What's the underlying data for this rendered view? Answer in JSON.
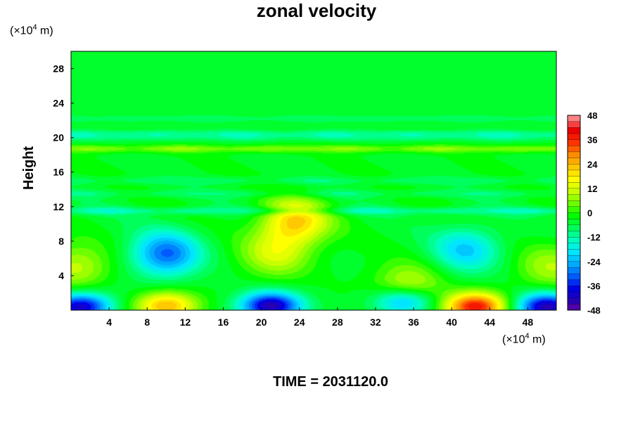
{
  "chart_data": {
    "type": "heatmap",
    "title": "zonal velocity",
    "ylabel": "Height",
    "xlabel": "",
    "x_unit": {
      "prefix": "(×10",
      "exponent": "4",
      "suffix": " m)"
    },
    "y_unit": {
      "prefix": "(×10",
      "exponent": "4",
      "suffix": " m)"
    },
    "xlim": [
      0,
      51
    ],
    "ylim": [
      0,
      30
    ],
    "x_ticks": [
      4,
      8,
      12,
      16,
      20,
      24,
      28,
      32,
      36,
      40,
      44,
      48
    ],
    "y_ticks": [
      4,
      8,
      12,
      16,
      20,
      24,
      28
    ],
    "colorbar": {
      "min": -48,
      "max": 48,
      "step": 3,
      "tick_labels": [
        48,
        36,
        24,
        12,
        0,
        -12,
        -24,
        -36,
        -48
      ]
    },
    "features": [
      {
        "x": 1.0,
        "y": 0.4,
        "value": -38
      },
      {
        "x": 0.5,
        "y": 5.0,
        "value": 14
      },
      {
        "x": 10.0,
        "y": 0.5,
        "value": 28
      },
      {
        "x": 10.0,
        "y": 6.5,
        "value": -27
      },
      {
        "x": 21.0,
        "y": 0.5,
        "value": -40
      },
      {
        "x": 21.5,
        "y": 6.5,
        "value": 15
      },
      {
        "x": 23.5,
        "y": 10.2,
        "value": 25
      },
      {
        "x": 35.0,
        "y": 1.0,
        "value": -25
      },
      {
        "x": 35.5,
        "y": 2.8,
        "value": 15
      },
      {
        "x": 42.5,
        "y": 0.4,
        "value": 42
      },
      {
        "x": 41.5,
        "y": 7.0,
        "value": -18
      },
      {
        "x": 50.0,
        "y": 0.4,
        "value": -40
      },
      {
        "x": 50.5,
        "y": 5.0,
        "value": 12
      }
    ],
    "bands": [
      {
        "y": 11.5,
        "value": -9
      },
      {
        "y": 13.5,
        "value": -5
      },
      {
        "y": 15.0,
        "value": -5
      },
      {
        "y": 18.7,
        "value": 10
      },
      {
        "y": 20.0,
        "value": -6
      },
      {
        "y": 20.5,
        "value": -7
      },
      {
        "y": 22.2,
        "value": -5
      }
    ]
  },
  "time": {
    "label": "TIME =",
    "value": "2031120.0"
  }
}
